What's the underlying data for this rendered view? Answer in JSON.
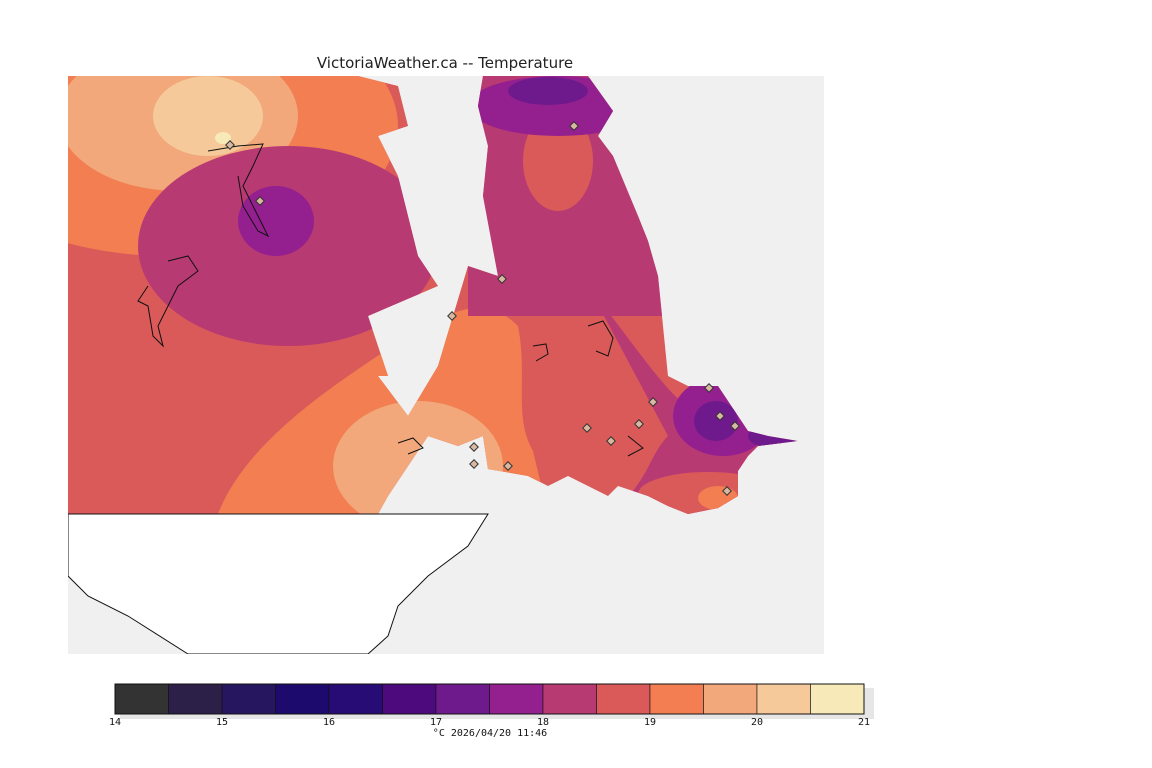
{
  "title": "VictoriaWeather.ca -- Temperature",
  "colors": {
    "background": "#ffffff",
    "water": "#f0f0f0",
    "coast": "#111111",
    "station_marker": "#d8b8a0"
  },
  "colorbar": {
    "unit_label": "°C",
    "timestamp": "2026/04/20 11:46",
    "tick_labels": [
      "14",
      "15",
      "16",
      "17",
      "18",
      "19",
      "20",
      "21"
    ],
    "bins": [
      {
        "from": 14.0,
        "to": 14.5,
        "color": "#333333"
      },
      {
        "from": 14.5,
        "to": 15.0,
        "color": "#2c2048"
      },
      {
        "from": 15.0,
        "to": 15.5,
        "color": "#261660"
      },
      {
        "from": 15.5,
        "to": 16.0,
        "color": "#1c0a6c"
      },
      {
        "from": 16.0,
        "to": 16.5,
        "color": "#260c74"
      },
      {
        "from": 16.5,
        "to": 17.0,
        "color": "#4c0a7c"
      },
      {
        "from": 17.0,
        "to": 17.5,
        "color": "#6e1a8c"
      },
      {
        "from": 17.5,
        "to": 18.0,
        "color": "#942090"
      },
      {
        "from": 18.0,
        "to": 18.5,
        "color": "#b83a72"
      },
      {
        "from": 18.5,
        "to": 19.0,
        "color": "#da5a5a"
      },
      {
        "from": 19.0,
        "to": 19.5,
        "color": "#f27e52"
      },
      {
        "from": 19.5,
        "to": 20.0,
        "color": "#f2a87a"
      },
      {
        "from": 20.0,
        "to": 20.5,
        "color": "#f5c99a"
      },
      {
        "from": 20.5,
        "to": 21.0,
        "color": "#f7eab8"
      }
    ]
  }
}
